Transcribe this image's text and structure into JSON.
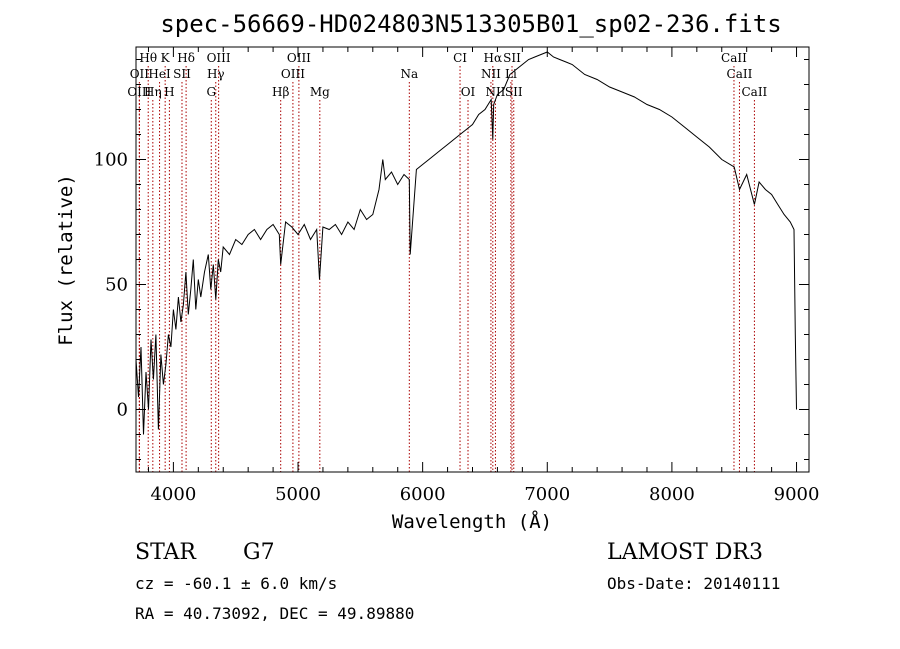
{
  "chart_data": {
    "type": "line",
    "title": "spec-56669-HD024803N513305B01_sp02-236.fits",
    "xlabel": "Wavelength (Å)",
    "ylabel": "Flux (relative)",
    "xlim": [
      3700,
      9100
    ],
    "ylim": [
      -25,
      145
    ],
    "xticks": [
      4000,
      5000,
      6000,
      7000,
      8000,
      9000
    ],
    "yticks": [
      0,
      50,
      100
    ],
    "grid": false,
    "series": [
      {
        "name": "flux",
        "x": [
          3700,
          3720,
          3740,
          3760,
          3780,
          3800,
          3820,
          3840,
          3860,
          3880,
          3900,
          3920,
          3940,
          3960,
          3980,
          4000,
          4020,
          4040,
          4060,
          4080,
          4100,
          4120,
          4140,
          4160,
          4180,
          4200,
          4220,
          4250,
          4280,
          4300,
          4320,
          4340,
          4360,
          4380,
          4400,
          4450,
          4500,
          4550,
          4600,
          4650,
          4700,
          4750,
          4800,
          4850,
          4861,
          4900,
          4950,
          5000,
          5050,
          5100,
          5150,
          5172,
          5200,
          5250,
          5300,
          5350,
          5400,
          5450,
          5500,
          5550,
          5600,
          5650,
          5680,
          5700,
          5750,
          5800,
          5850,
          5893,
          5900,
          5950,
          6000,
          6050,
          6100,
          6150,
          6200,
          6250,
          6300,
          6350,
          6400,
          6450,
          6500,
          6550,
          6563,
          6570,
          6600,
          6650,
          6700,
          6750,
          6800,
          6850,
          6900,
          6950,
          7000,
          7050,
          7100,
          7150,
          7200,
          7300,
          7400,
          7500,
          7600,
          7700,
          7800,
          7900,
          8000,
          8100,
          8200,
          8300,
          8400,
          8500,
          8542,
          8600,
          8662,
          8700,
          8750,
          8800,
          8850,
          8900,
          8950,
          8980,
          8990,
          9000
        ],
        "values": [
          20,
          5,
          25,
          -10,
          15,
          0,
          28,
          12,
          30,
          -8,
          22,
          10,
          18,
          30,
          25,
          40,
          32,
          45,
          35,
          42,
          55,
          38,
          48,
          60,
          40,
          52,
          45,
          55,
          62,
          48,
          58,
          44,
          60,
          55,
          65,
          62,
          68,
          66,
          70,
          72,
          68,
          72,
          74,
          70,
          58,
          75,
          73,
          70,
          74,
          68,
          72,
          52,
          73,
          72,
          74,
          70,
          75,
          72,
          80,
          76,
          78,
          88,
          100,
          92,
          95,
          90,
          94,
          92,
          62,
          96,
          98,
          100,
          102,
          104,
          106,
          108,
          110,
          112,
          114,
          118,
          120,
          124,
          108,
          122,
          126,
          128,
          134,
          136,
          138,
          140,
          141,
          142,
          143,
          141,
          140,
          139,
          138,
          134,
          132,
          129,
          127,
          125,
          122,
          120,
          117,
          113,
          109,
          105,
          100,
          97,
          88,
          94,
          82,
          91,
          88,
          86,
          82,
          78,
          75,
          72,
          30,
          0
        ]
      }
    ],
    "spectral_lines": [
      {
        "label": "Hθ",
        "x": 3798,
        "row": 1
      },
      {
        "label": "K",
        "x": 3934,
        "row": 1
      },
      {
        "label": "Hδ",
        "x": 4102,
        "row": 1
      },
      {
        "label": "OIII",
        "x": 4363,
        "row": 1
      },
      {
        "label": "OIII",
        "x": 5007,
        "row": 1
      },
      {
        "label": "CI",
        "x": 6300,
        "row": 1
      },
      {
        "label": "Hα",
        "x": 6563,
        "row": 1
      },
      {
        "label": "SII",
        "x": 6717,
        "row": 1
      },
      {
        "label": "CaII",
        "x": 8498,
        "row": 1
      },
      {
        "label": "OII",
        "x": 3727,
        "row": 2
      },
      {
        "label": "HeI",
        "x": 3889,
        "row": 2
      },
      {
        "label": "SII",
        "x": 4069,
        "row": 2
      },
      {
        "label": "Hγ",
        "x": 4340,
        "row": 2
      },
      {
        "label": "OIII",
        "x": 4959,
        "row": 2
      },
      {
        "label": "Na",
        "x": 5893,
        "row": 2
      },
      {
        "label": "NII",
        "x": 6548,
        "row": 2
      },
      {
        "label": "Li",
        "x": 6708,
        "row": 2
      },
      {
        "label": "CaII",
        "x": 8542,
        "row": 2
      },
      {
        "label": "OIII",
        "x": 3727,
        "row": 3
      },
      {
        "label": "Hη",
        "x": 3835,
        "row": 3
      },
      {
        "label": "H",
        "x": 3968,
        "row": 3
      },
      {
        "label": "G",
        "x": 4304,
        "row": 3
      },
      {
        "label": "Hβ",
        "x": 4861,
        "row": 3
      },
      {
        "label": "Mg",
        "x": 5175,
        "row": 3
      },
      {
        "label": "OI",
        "x": 6364,
        "row": 3
      },
      {
        "label": "NII",
        "x": 6584,
        "row": 3
      },
      {
        "label": "SII",
        "x": 6731,
        "row": 3
      },
      {
        "label": "CaII",
        "x": 8662,
        "row": 3
      }
    ]
  },
  "footer": {
    "object_class": "STAR",
    "subclass": "G7",
    "survey": "LAMOST DR3",
    "redshift": "cz = -60.1 ± 6.0 km/s",
    "obs_date": "Obs-Date: 20140111",
    "coords": "RA =  40.73092, DEC =  49.89880"
  },
  "colors": {
    "axis": "#000000",
    "spectrum": "#000000",
    "line_marker": "#aa0000"
  }
}
